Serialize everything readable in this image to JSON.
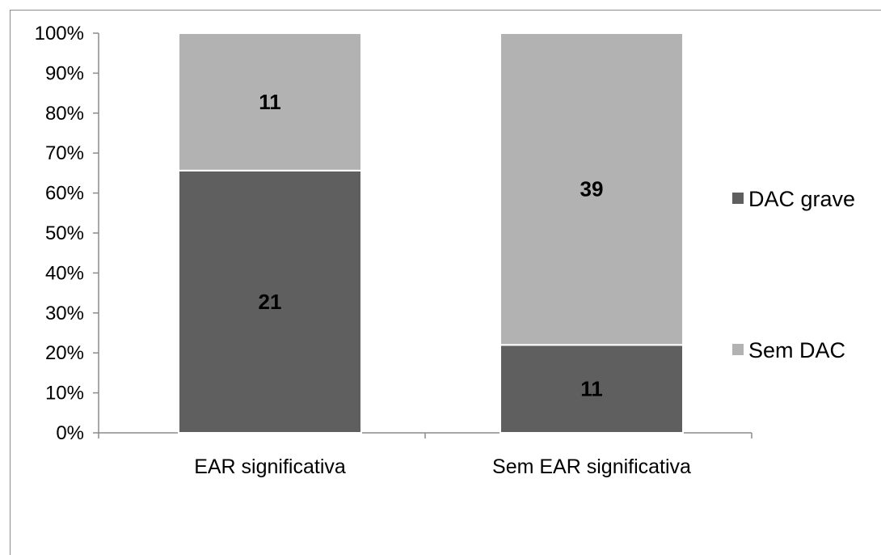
{
  "chart_data": {
    "type": "bar",
    "stacked": true,
    "percent_stacked": true,
    "categories": [
      "EAR significativa",
      "Sem EAR significativa"
    ],
    "series": [
      {
        "name": "DAC grave",
        "values": [
          21,
          11
        ],
        "color": "#5f5f5f"
      },
      {
        "name": "Sem DAC",
        "values": [
          11,
          39
        ],
        "color": "#b2b2b2"
      }
    ],
    "y_ticks": [
      "0%",
      "10%",
      "20%",
      "30%",
      "40%",
      "50%",
      "60%",
      "70%",
      "80%",
      "90%",
      "100%"
    ],
    "ylim": [
      0,
      100
    ],
    "grid": false,
    "legend_position": "right",
    "legend_order": [
      "DAC grave",
      "Sem DAC"
    ]
  }
}
